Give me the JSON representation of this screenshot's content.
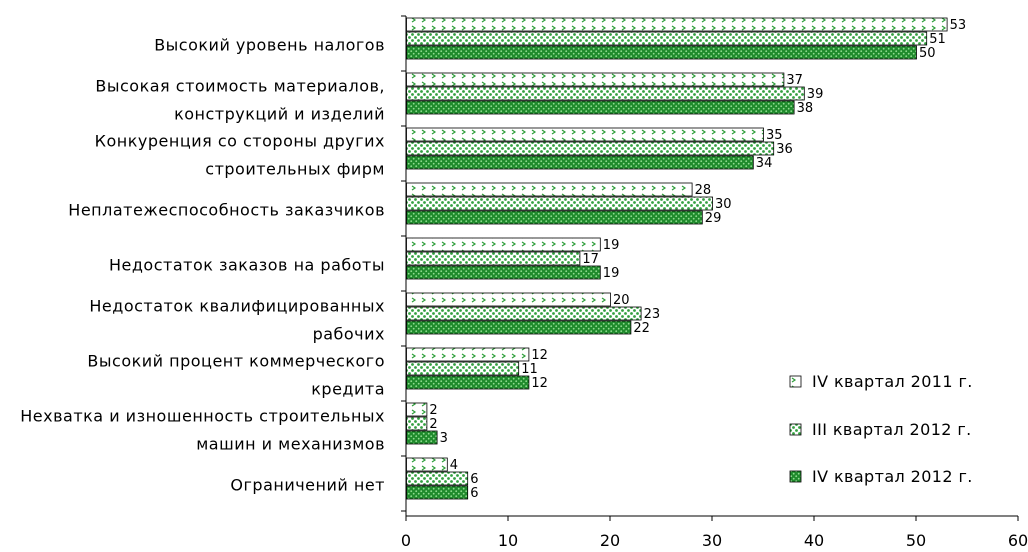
{
  "chart_data": {
    "type": "bar",
    "orientation": "horizontal",
    "categories": [
      [
        "Высокий уровень налогов"
      ],
      [
        "Высокая стоимость материалов,",
        "конструкций и изделий"
      ],
      [
        "Конкуренция со стороны других",
        "строительных фирм"
      ],
      [
        "Неплатежеспособность заказчиков"
      ],
      [
        "Недостаток заказов на работы"
      ],
      [
        "Недостаток квалифицированных",
        "рабочих"
      ],
      [
        "Высокий процент коммерческого",
        "кредита"
      ],
      [
        "Нехватка и изношенность строительных",
        "машин и механизмов"
      ],
      [
        "Ограничений нет"
      ]
    ],
    "series": [
      {
        "name": "IV квартал 2011 г.",
        "values": [
          53,
          37,
          35,
          28,
          19,
          20,
          12,
          2,
          4
        ],
        "fill": "#ffffff",
        "pattern": "chevron",
        "pattern_color": "#2e9e3a"
      },
      {
        "name": "III квартал 2012 г.",
        "values": [
          51,
          39,
          36,
          30,
          17,
          23,
          11,
          2,
          6
        ],
        "fill": "#ffffff",
        "pattern": "dots",
        "pattern_color": "#33a040"
      },
      {
        "name": "IV квартал 2012 г.",
        "values": [
          50,
          38,
          34,
          29,
          19,
          22,
          12,
          3,
          6
        ],
        "fill": "#1f8a2c",
        "pattern": "dots-dense",
        "pattern_color": "#7fd07f"
      }
    ],
    "xlim": [
      0,
      60
    ],
    "xticks": [
      0,
      10,
      20,
      30,
      40,
      50,
      60
    ],
    "grid": false,
    "legend_position": "bottom-right"
  }
}
